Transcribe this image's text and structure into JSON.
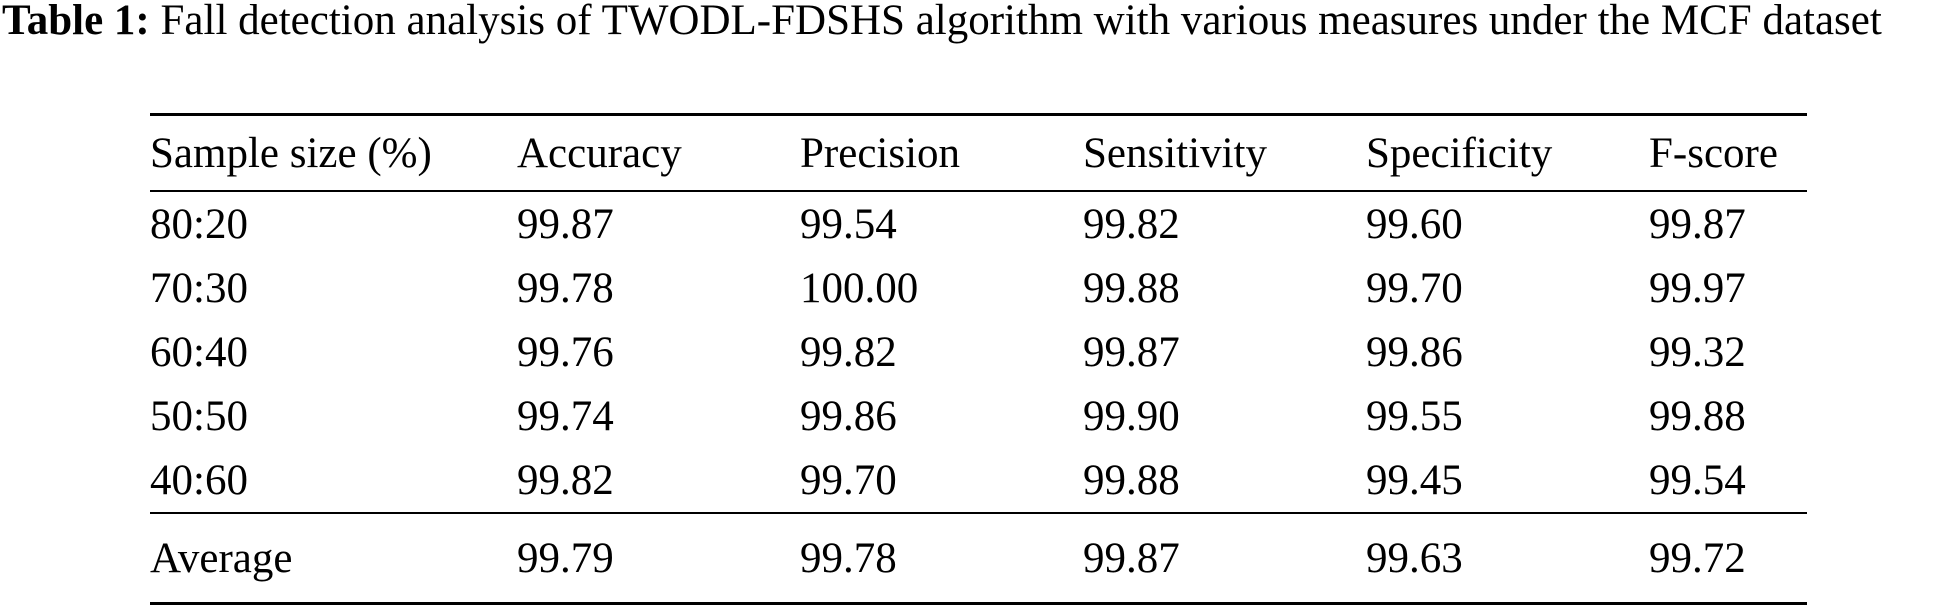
{
  "caption": {
    "label": "Table 1:",
    "text": "Fall detection analysis of TWODL-FDSHS algorithm with various measures under the MCF dataset"
  },
  "table": {
    "columns": [
      "Sample size (%)",
      "Accuracy",
      "Precision",
      "Sensitivity",
      "Specificity",
      "F-score"
    ],
    "rows": [
      [
        "80:20",
        "99.87",
        "99.54",
        "99.82",
        "99.60",
        "99.87"
      ],
      [
        "70:30",
        "99.78",
        "100.00",
        "99.88",
        "99.70",
        "99.97"
      ],
      [
        "60:40",
        "99.76",
        "99.82",
        "99.87",
        "99.86",
        "99.32"
      ],
      [
        "50:50",
        "99.74",
        "99.86",
        "99.90",
        "99.55",
        "99.88"
      ],
      [
        "40:60",
        "99.82",
        "99.70",
        "99.88",
        "99.45",
        "99.54"
      ]
    ],
    "footer": [
      "Average",
      "99.79",
      "99.78",
      "99.87",
      "99.63",
      "99.72"
    ]
  },
  "colors": {
    "text": "#000000",
    "background": "#ffffff",
    "rule": "#000000"
  }
}
